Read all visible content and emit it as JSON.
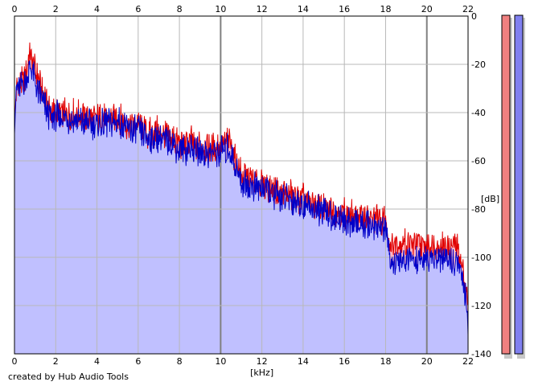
{
  "credit": "created by Hub Audio Tools",
  "colors": {
    "left_channel": "#e00000",
    "left_fill": "#ffb8c4",
    "right_channel": "#0000c8",
    "right_fill": "#c0c0ff",
    "meter_left": "#f08080",
    "meter_right": "#8080f0",
    "grid_major": "#808080",
    "grid_minor": "#b8b8b8"
  },
  "chart_data": {
    "type": "area",
    "xlabel": "[kHz]",
    "ylabel": "[dB]",
    "xlim": [
      0,
      22
    ],
    "ylim": [
      -140,
      0
    ],
    "x_ticks": [
      0,
      2,
      4,
      6,
      8,
      10,
      12,
      14,
      16,
      18,
      20,
      22
    ],
    "y_ticks": [
      0,
      -20,
      -40,
      -60,
      -80,
      -100,
      -120,
      -140
    ],
    "x_tick_labels": [
      "0",
      "2",
      "4",
      "6",
      "8",
      "10",
      "12",
      "14",
      "16",
      "18",
      "20",
      "22"
    ],
    "y_tick_labels": [
      "0",
      "-20",
      "-40",
      "-60",
      "-80",
      "-100",
      "-120",
      "-140"
    ],
    "x_ticks_top": true,
    "grid": true,
    "series": [
      {
        "color_key": "left_channel",
        "x": [
          0,
          0.1,
          0.3,
          0.5,
          0.6,
          0.75,
          0.9,
          1.1,
          1.3,
          1.6,
          1.8,
          2.0,
          2.5,
          3.0,
          3.5,
          4.0,
          4.5,
          5.0,
          5.5,
          6.0,
          6.5,
          7.0,
          7.5,
          8.0,
          8.5,
          9.0,
          9.5,
          10.0,
          10.4,
          10.8,
          11.0,
          12.0,
          13.0,
          14.0,
          15.0,
          16.0,
          17.0,
          17.8,
          18.0,
          18.2,
          18.5,
          19.0,
          20.0,
          21.0,
          21.5,
          21.7,
          21.9,
          22.0
        ],
        "values": [
          -44,
          -30,
          -28,
          -27,
          -22,
          -15,
          -20,
          -25,
          -30,
          -36,
          -40,
          -40,
          -41,
          -41,
          -42,
          -43,
          -42,
          -42,
          -45,
          -45,
          -49,
          -48,
          -50,
          -53,
          -52,
          -54,
          -55,
          -54,
          -52,
          -61,
          -66,
          -70,
          -73,
          -76,
          -80,
          -82,
          -84,
          -84,
          -85,
          -95,
          -94,
          -94,
          -95,
          -95,
          -96,
          -104,
          -112,
          -120
        ]
      },
      {
        "color_key": "right_channel",
        "x": [
          0,
          0.1,
          0.3,
          0.5,
          0.6,
          0.75,
          0.9,
          1.1,
          1.3,
          1.6,
          1.8,
          2.0,
          2.5,
          3.0,
          3.5,
          4.0,
          4.5,
          5.0,
          5.5,
          6.0,
          6.5,
          7.0,
          7.5,
          8.0,
          8.5,
          9.0,
          9.5,
          10.0,
          10.4,
          10.8,
          11.0,
          12.0,
          13.0,
          14.0,
          15.0,
          16.0,
          17.0,
          17.8,
          18.0,
          18.2,
          18.5,
          19.0,
          20.0,
          21.0,
          21.5,
          21.7,
          21.9,
          22.0
        ],
        "values": [
          -42,
          -30,
          -29,
          -28,
          -25,
          -22,
          -24,
          -30,
          -34,
          -40,
          -42,
          -42,
          -42,
          -43,
          -44,
          -45,
          -44,
          -44,
          -47,
          -47,
          -51,
          -50,
          -52,
          -55,
          -55,
          -56,
          -57,
          -56,
          -55,
          -64,
          -69,
          -72,
          -75,
          -78,
          -82,
          -85,
          -87,
          -87,
          -89,
          -100,
          -103,
          -101,
          -101,
          -101,
          -102,
          -108,
          -118,
          -129
        ]
      }
    ]
  }
}
